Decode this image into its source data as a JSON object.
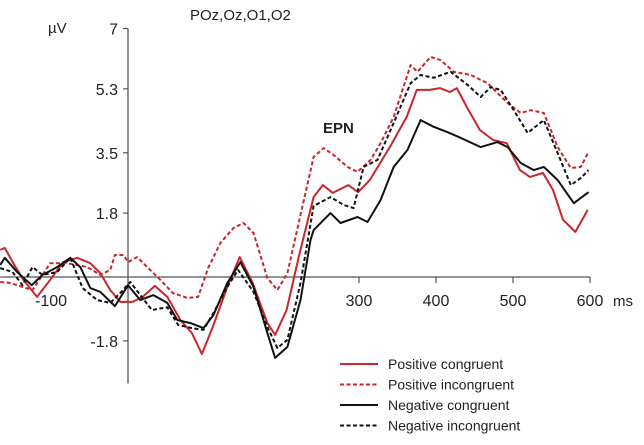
{
  "chart_data": {
    "type": "line",
    "title": "POz,Oz,O1,O2",
    "xlabel": "ms",
    "ylabel": "µV",
    "annotation": "EPN",
    "xlim": [
      -166,
      600
    ],
    "ylim": [
      -3.0,
      7
    ],
    "x_ticks": [
      {
        "value": -100,
        "label": "-100"
      },
      {
        "value": 300,
        "label": "300"
      },
      {
        "value": 400,
        "label": "400"
      },
      {
        "value": 500,
        "label": "500"
      },
      {
        "value": 600,
        "label": "600"
      }
    ],
    "y_ticks": [
      {
        "value": 7,
        "label": "7"
      },
      {
        "value": 5.3,
        "label": "5.3"
      },
      {
        "value": 3.5,
        "label": "3.5"
      },
      {
        "value": 1.8,
        "label": "1.8"
      },
      {
        "value": -1.8,
        "label": "-1.8"
      }
    ],
    "grid": false,
    "legend_position": "bottom-right",
    "series": [
      {
        "name": "Positive congruent",
        "color": "#c8262b",
        "dash": false,
        "x": [
          -166,
          -160,
          -149,
          -136,
          -118,
          -101,
          -84,
          -66,
          -49,
          -36,
          -23,
          -10,
          6,
          19,
          35,
          51,
          68,
          83,
          96,
          110,
          129,
          145,
          162,
          181,
          191,
          206,
          223,
          241,
          253,
          266,
          286,
          299,
          314,
          340,
          362,
          375,
          392,
          405,
          418,
          427,
          440,
          457,
          474,
          492,
          509,
          522,
          539,
          552,
          565,
          581,
          597
        ],
        "y": [
          0.76,
          0.82,
          0.39,
          -0.08,
          -0.56,
          -0.08,
          0.42,
          0.54,
          0.39,
          0.11,
          -0.37,
          -0.7,
          -0.7,
          -0.56,
          -0.25,
          -0.56,
          -1.21,
          -1.58,
          -2.17,
          -1.41,
          -0.28,
          0.56,
          -0.17,
          -1.3,
          -1.63,
          -0.93,
          0.68,
          2.25,
          2.59,
          2.37,
          2.59,
          2.39,
          2.73,
          3.66,
          4.51,
          5.27,
          5.27,
          5.32,
          5.21,
          5.32,
          4.79,
          4.14,
          3.86,
          3.77,
          3.01,
          2.82,
          2.93,
          2.45,
          1.61,
          1.27,
          1.89
        ]
      },
      {
        "name": "Positive incongruent",
        "color": "#c8262b",
        "dash": true,
        "x": [
          -166,
          -153,
          -124,
          -101,
          -79,
          -53,
          -36,
          -23,
          -17,
          -6,
          0,
          12,
          25,
          42,
          58,
          77,
          91,
          104,
          120,
          137,
          150,
          163,
          181,
          194,
          207,
          224,
          241,
          254,
          267,
          285,
          298,
          315,
          328,
          345,
          367,
          376,
          393,
          406,
          423,
          445,
          467,
          493,
          510,
          523,
          540,
          558,
          575,
          588,
          598
        ],
        "y": [
          -0.14,
          -0.17,
          -0.37,
          0.39,
          0.39,
          0.28,
          0.06,
          0.2,
          0.62,
          0.62,
          0.42,
          0.56,
          0.28,
          -0.08,
          -0.45,
          -0.59,
          -0.56,
          0.25,
          0.96,
          1.38,
          1.52,
          1.24,
          -0.03,
          -0.37,
          0.11,
          1.75,
          3.38,
          3.63,
          3.44,
          3.1,
          2.96,
          3.3,
          3.77,
          4.51,
          5.97,
          5.78,
          6.2,
          6.11,
          5.78,
          5.69,
          5.46,
          4.9,
          4.62,
          4.7,
          4.62,
          3.66,
          3.07,
          3.1,
          3.52
        ]
      },
      {
        "name": "Negative congruent",
        "color": "#111111",
        "dash": false,
        "x": [
          -166,
          -160,
          -144,
          -125,
          -111,
          -92,
          -75,
          -62,
          -49,
          -36,
          -17,
          0,
          16,
          33,
          51,
          64,
          81,
          98,
          111,
          129,
          146,
          163,
          181,
          191,
          207,
          224,
          237,
          241,
          263,
          276,
          298,
          311,
          328,
          345,
          363,
          380,
          397,
          415,
          432,
          458,
          480,
          493,
          510,
          527,
          540,
          558,
          579,
          598
        ],
        "y": [
          0.34,
          0.54,
          0.14,
          -0.23,
          0.06,
          0.28,
          0.54,
          0.28,
          -0.31,
          -0.42,
          -0.82,
          -0.23,
          -0.65,
          -0.51,
          -0.73,
          -1.21,
          -1.3,
          -1.44,
          -1.07,
          -0.17,
          0.42,
          -0.28,
          -1.58,
          -2.28,
          -1.97,
          -0.65,
          1.04,
          1.32,
          1.8,
          1.52,
          1.69,
          1.55,
          2.17,
          3.1,
          3.58,
          4.42,
          4.23,
          4.08,
          3.92,
          3.66,
          3.8,
          3.66,
          3.21,
          3.01,
          3.1,
          2.73,
          2.08,
          2.39
        ]
      },
      {
        "name": "Negative incongruent",
        "color": "#111111",
        "dash": true,
        "x": [
          -166,
          -150,
          -137,
          -124,
          -111,
          -92,
          -75,
          -59,
          -40,
          -23,
          -10,
          3,
          16,
          31,
          51,
          65,
          83,
          98,
          111,
          129,
          143,
          163,
          181,
          194,
          207,
          224,
          241,
          263,
          280,
          293,
          306,
          324,
          345,
          367,
          380,
          397,
          419,
          441,
          458,
          471,
          484,
          501,
          519,
          540,
          558,
          575,
          588,
          598
        ],
        "y": [
          0.25,
          0.14,
          -0.23,
          0.28,
          0.06,
          0.14,
          0.54,
          -0.31,
          -0.65,
          -0.73,
          -0.45,
          -0.14,
          -0.51,
          -0.93,
          -0.85,
          -1.35,
          -1.44,
          -1.49,
          -1.01,
          -0.28,
          0.2,
          -0.42,
          -1.41,
          -2.0,
          -1.77,
          -0.17,
          2.0,
          2.25,
          2.03,
          1.94,
          3.1,
          3.3,
          4.34,
          5.46,
          5.69,
          5.61,
          5.78,
          5.41,
          5.07,
          5.35,
          5.27,
          4.7,
          4.06,
          4.42,
          3.49,
          2.59,
          2.79,
          3.01
        ]
      }
    ]
  }
}
